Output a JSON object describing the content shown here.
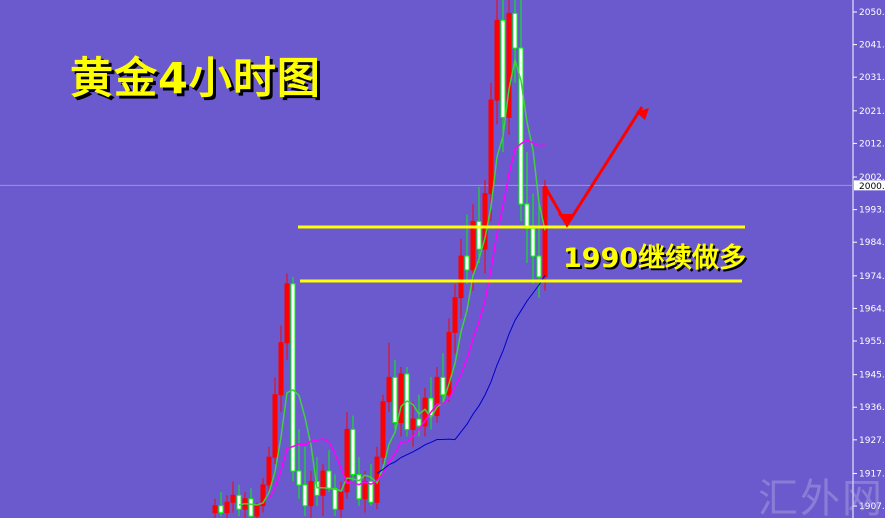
{
  "title": "黄金4小时图",
  "annotation": "1990继续做多",
  "watermark": "汇外网",
  "colors": {
    "background": "#6a5acd",
    "bull": "#ff0000",
    "bear": "#00ff00",
    "bear_body": "#ffffff",
    "ma_fast": "#40d040",
    "ma_mid": "#ff00ff",
    "ma_slow": "#0000cc",
    "level": "#ffff00",
    "arrow": "#ff0000",
    "current": "#a0a0a0"
  },
  "chart_data": {
    "type": "candlestick",
    "title": "黄金4小时图",
    "ylim": [
      1903,
      2053
    ],
    "y_ticks": [
      "2050.4",
      "2041.0",
      "2031.6",
      "2021.9",
      "2012.5",
      "2002.8",
      "1993.4",
      "1984.0",
      "1974.3",
      "1964.9",
      "1955.5",
      "1945.8",
      "1936.4",
      "1927.0",
      "1917.3",
      "1907.9"
    ],
    "current_price": "2000.4",
    "support_levels": [
      1988.4,
      1972.8
    ],
    "candles": [
      [
        1906,
        1910,
        1903,
        1908
      ],
      [
        1908,
        1912,
        1905,
        1906
      ],
      [
        1906,
        1911,
        1904,
        1909
      ],
      [
        1909,
        1915,
        1906,
        1911
      ],
      [
        1911,
        1914,
        1905,
        1907
      ],
      [
        1907,
        1912,
        1903,
        1910
      ],
      [
        1910,
        1913,
        1904,
        1905
      ],
      [
        1905,
        1909,
        1900,
        1908
      ],
      [
        1908,
        1916,
        1906,
        1914
      ],
      [
        1914,
        1925,
        1912,
        1922
      ],
      [
        1922,
        1945,
        1920,
        1940
      ],
      [
        1940,
        1960,
        1935,
        1955
      ],
      [
        1955,
        1975,
        1950,
        1972
      ],
      [
        1972,
        1974,
        1915,
        1918
      ],
      [
        1918,
        1930,
        1910,
        1914
      ],
      [
        1914,
        1925,
        1905,
        1908
      ],
      [
        1908,
        1918,
        1904,
        1915
      ],
      [
        1915,
        1922,
        1908,
        1911
      ],
      [
        1911,
        1920,
        1905,
        1918
      ],
      [
        1918,
        1924,
        1912,
        1913
      ],
      [
        1913,
        1917,
        1905,
        1907
      ],
      [
        1907,
        1915,
        1903,
        1912
      ],
      [
        1912,
        1935,
        1910,
        1930
      ],
      [
        1930,
        1934,
        1915,
        1917
      ],
      [
        1917,
        1922,
        1908,
        1910
      ],
      [
        1910,
        1918,
        1906,
        1915
      ],
      [
        1915,
        1920,
        1908,
        1909
      ],
      [
        1909,
        1925,
        1907,
        1922
      ],
      [
        1922,
        1940,
        1920,
        1938
      ],
      [
        1938,
        1955,
        1935,
        1945
      ],
      [
        1945,
        1950,
        1930,
        1932
      ],
      [
        1932,
        1948,
        1928,
        1946
      ],
      [
        1946,
        1948,
        1928,
        1930
      ],
      [
        1930,
        1938,
        1925,
        1933
      ],
      [
        1933,
        1940,
        1928,
        1931
      ],
      [
        1931,
        1942,
        1928,
        1939
      ],
      [
        1939,
        1945,
        1930,
        1934
      ],
      [
        1934,
        1948,
        1932,
        1945
      ],
      [
        1945,
        1952,
        1938,
        1940
      ],
      [
        1940,
        1962,
        1938,
        1958
      ],
      [
        1958,
        1972,
        1952,
        1968
      ],
      [
        1968,
        1985,
        1962,
        1980
      ],
      [
        1980,
        1992,
        1972,
        1976
      ],
      [
        1976,
        1995,
        1970,
        1990
      ],
      [
        1990,
        2000,
        1978,
        1982
      ],
      [
        1982,
        2002,
        1975,
        1998
      ],
      [
        1998,
        2030,
        1990,
        2025
      ],
      [
        2025,
        2055,
        2018,
        2048
      ],
      [
        2048,
        2058,
        2010,
        2020
      ],
      [
        2020,
        2056,
        2015,
        2050
      ],
      [
        2050,
        2058,
        2030,
        2040
      ],
      [
        2040,
        2055,
        1990,
        1995
      ],
      [
        1995,
        2010,
        1978,
        1988
      ],
      [
        1988,
        1998,
        1972,
        1980
      ],
      [
        1980,
        1995,
        1968,
        1974
      ],
      [
        1974,
        2002,
        1970,
        2000
      ]
    ],
    "arrow_path_prices": [
      2000,
      1989,
      2023
    ]
  }
}
